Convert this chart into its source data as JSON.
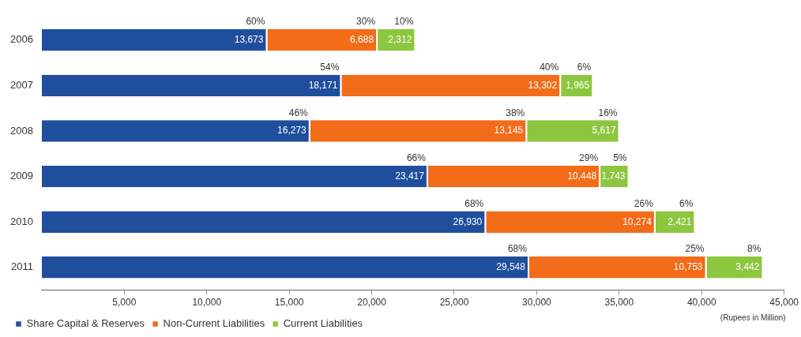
{
  "chart_data": {
    "type": "bar",
    "orientation": "horizontal",
    "stacked": true,
    "categories": [
      "2006",
      "2007",
      "2008",
      "2009",
      "2010",
      "2011"
    ],
    "series": [
      {
        "name": "Share Capital & Reserves",
        "color": "#1f4e9c",
        "values": [
          13673,
          18171,
          16273,
          23417,
          26930,
          29548
        ],
        "value_labels": [
          "13,673",
          "18,171",
          "16,273",
          "23,417",
          "26,930",
          "29,548"
        ]
      },
      {
        "name": "Non-Current Liabilities",
        "color": "#f26c1a",
        "values": [
          6688,
          13302,
          13145,
          10448,
          10274,
          10753
        ],
        "value_labels": [
          "6,688",
          "13,302",
          "13,145",
          "10,448",
          "10,274",
          "10,753"
        ]
      },
      {
        "name": "Current Liabilities",
        "color": "#8dc63f",
        "values": [
          2312,
          1965,
          5617,
          1743,
          2421,
          3442
        ],
        "value_labels": [
          "2,312",
          "1,965",
          "5,617",
          "1,743",
          "2,421",
          "3,442"
        ]
      }
    ],
    "xlim": [
      0,
      45000
    ],
    "xticks": [
      {
        "value": 5000,
        "label": "5,000"
      },
      {
        "value": 10000,
        "label": "10,000"
      },
      {
        "value": 15000,
        "label": "15,000"
      },
      {
        "value": 20000,
        "label": "20,000"
      },
      {
        "value": 25000,
        "label": "25,000"
      },
      {
        "value": 30000,
        "label": "30,000"
      },
      {
        "value": 35000,
        "label": "35,000"
      },
      {
        "value": 40000,
        "label": "40,000"
      },
      {
        "value": 45000,
        "label": "45,000"
      }
    ],
    "xlabel": "(Rupees in Million)",
    "grid": false,
    "legend": "bottom left",
    "annotations": [
      {
        "text": "60%",
        "x": 13673,
        "y": "2006"
      },
      {
        "text": "30%",
        "x": 20361,
        "y": "2006"
      },
      {
        "text": "10%",
        "x": 22673,
        "y": "2006"
      },
      {
        "text": "54%",
        "x": 18171,
        "y": "2007"
      },
      {
        "text": "40%",
        "x": 31473,
        "y": "2007"
      },
      {
        "text": "6%",
        "x": 33438,
        "y": "2007"
      },
      {
        "text": "46%",
        "x": 16273,
        "y": "2008"
      },
      {
        "text": "38%",
        "x": 29418,
        "y": "2008"
      },
      {
        "text": "16%",
        "x": 35035,
        "y": "2008"
      },
      {
        "text": "66%",
        "x": 23417,
        "y": "2009"
      },
      {
        "text": "29%",
        "x": 33865,
        "y": "2009"
      },
      {
        "text": "5%",
        "x": 35608,
        "y": "2009"
      },
      {
        "text": "68%",
        "x": 26930,
        "y": "2010"
      },
      {
        "text": "26%",
        "x": 37204,
        "y": "2010"
      },
      {
        "text": "6%",
        "x": 39625,
        "y": "2010"
      },
      {
        "text": "68%",
        "x": 29548,
        "y": "2011"
      },
      {
        "text": "25%",
        "x": 40301,
        "y": "2011"
      },
      {
        "text": "8%",
        "x": 43743,
        "y": "2011"
      }
    ]
  }
}
